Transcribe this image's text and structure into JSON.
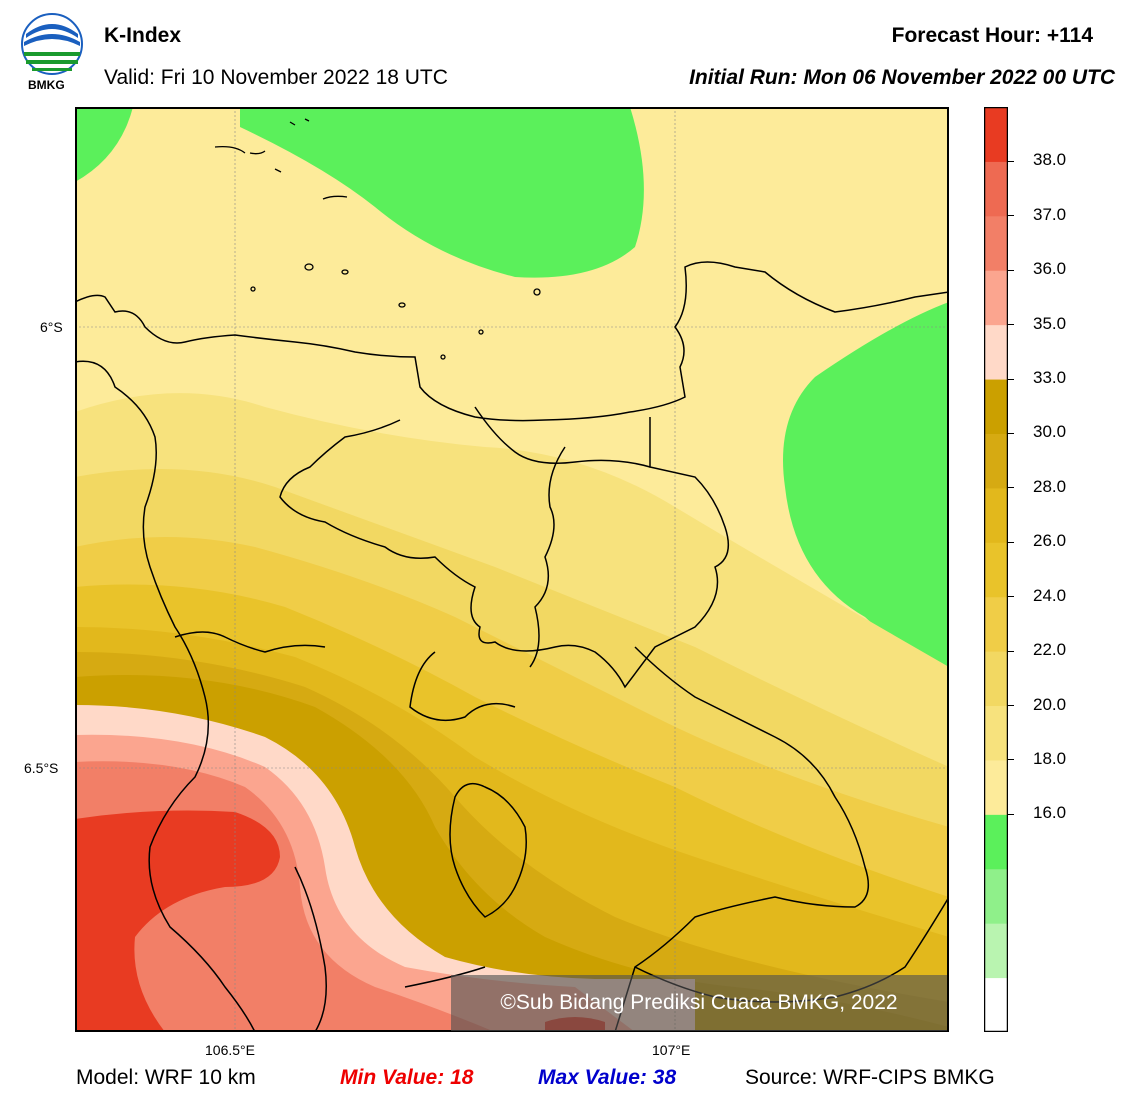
{
  "header": {
    "logo_text": "BMKG",
    "title": "K-Index",
    "valid": "Valid: Fri 10 November 2022 18 UTC",
    "forecast_hour": "Forecast Hour: +114",
    "initial_run": "Initial Run: Mon 06 November 2022 00 UTC"
  },
  "map": {
    "lat_labels": [
      "6°S",
      "6.5°S"
    ],
    "lon_labels": [
      "106.5°E",
      "107°E"
    ],
    "watermark": "©Sub Bidang Prediksi Cuaca BMKG, 2022"
  },
  "colorbar": {
    "tick_labels": [
      "38.0",
      "37.0",
      "36.0",
      "35.0",
      "33.0",
      "30.0",
      "28.0",
      "26.0",
      "24.0",
      "22.0",
      "20.0",
      "18.0",
      "16.0"
    ],
    "colors": [
      "#ffffff",
      "#b9f4b0",
      "#8ff08a",
      "#5bf05b",
      "#fdeb9a",
      "#f7e27d",
      "#f2d862",
      "#f0cd47",
      "#e9c32a",
      "#e2b81c",
      "#d6aa12",
      "#cba000",
      "#ffd9c8",
      "#fba58f",
      "#f27f67",
      "#ee6a52",
      "#e83b22"
    ]
  },
  "footer": {
    "model": "Model: WRF 10 km",
    "min_value": "Min Value: 18",
    "max_value": "Max Value: 38",
    "source": "Source: WRF-CIPS BMKG"
  }
}
